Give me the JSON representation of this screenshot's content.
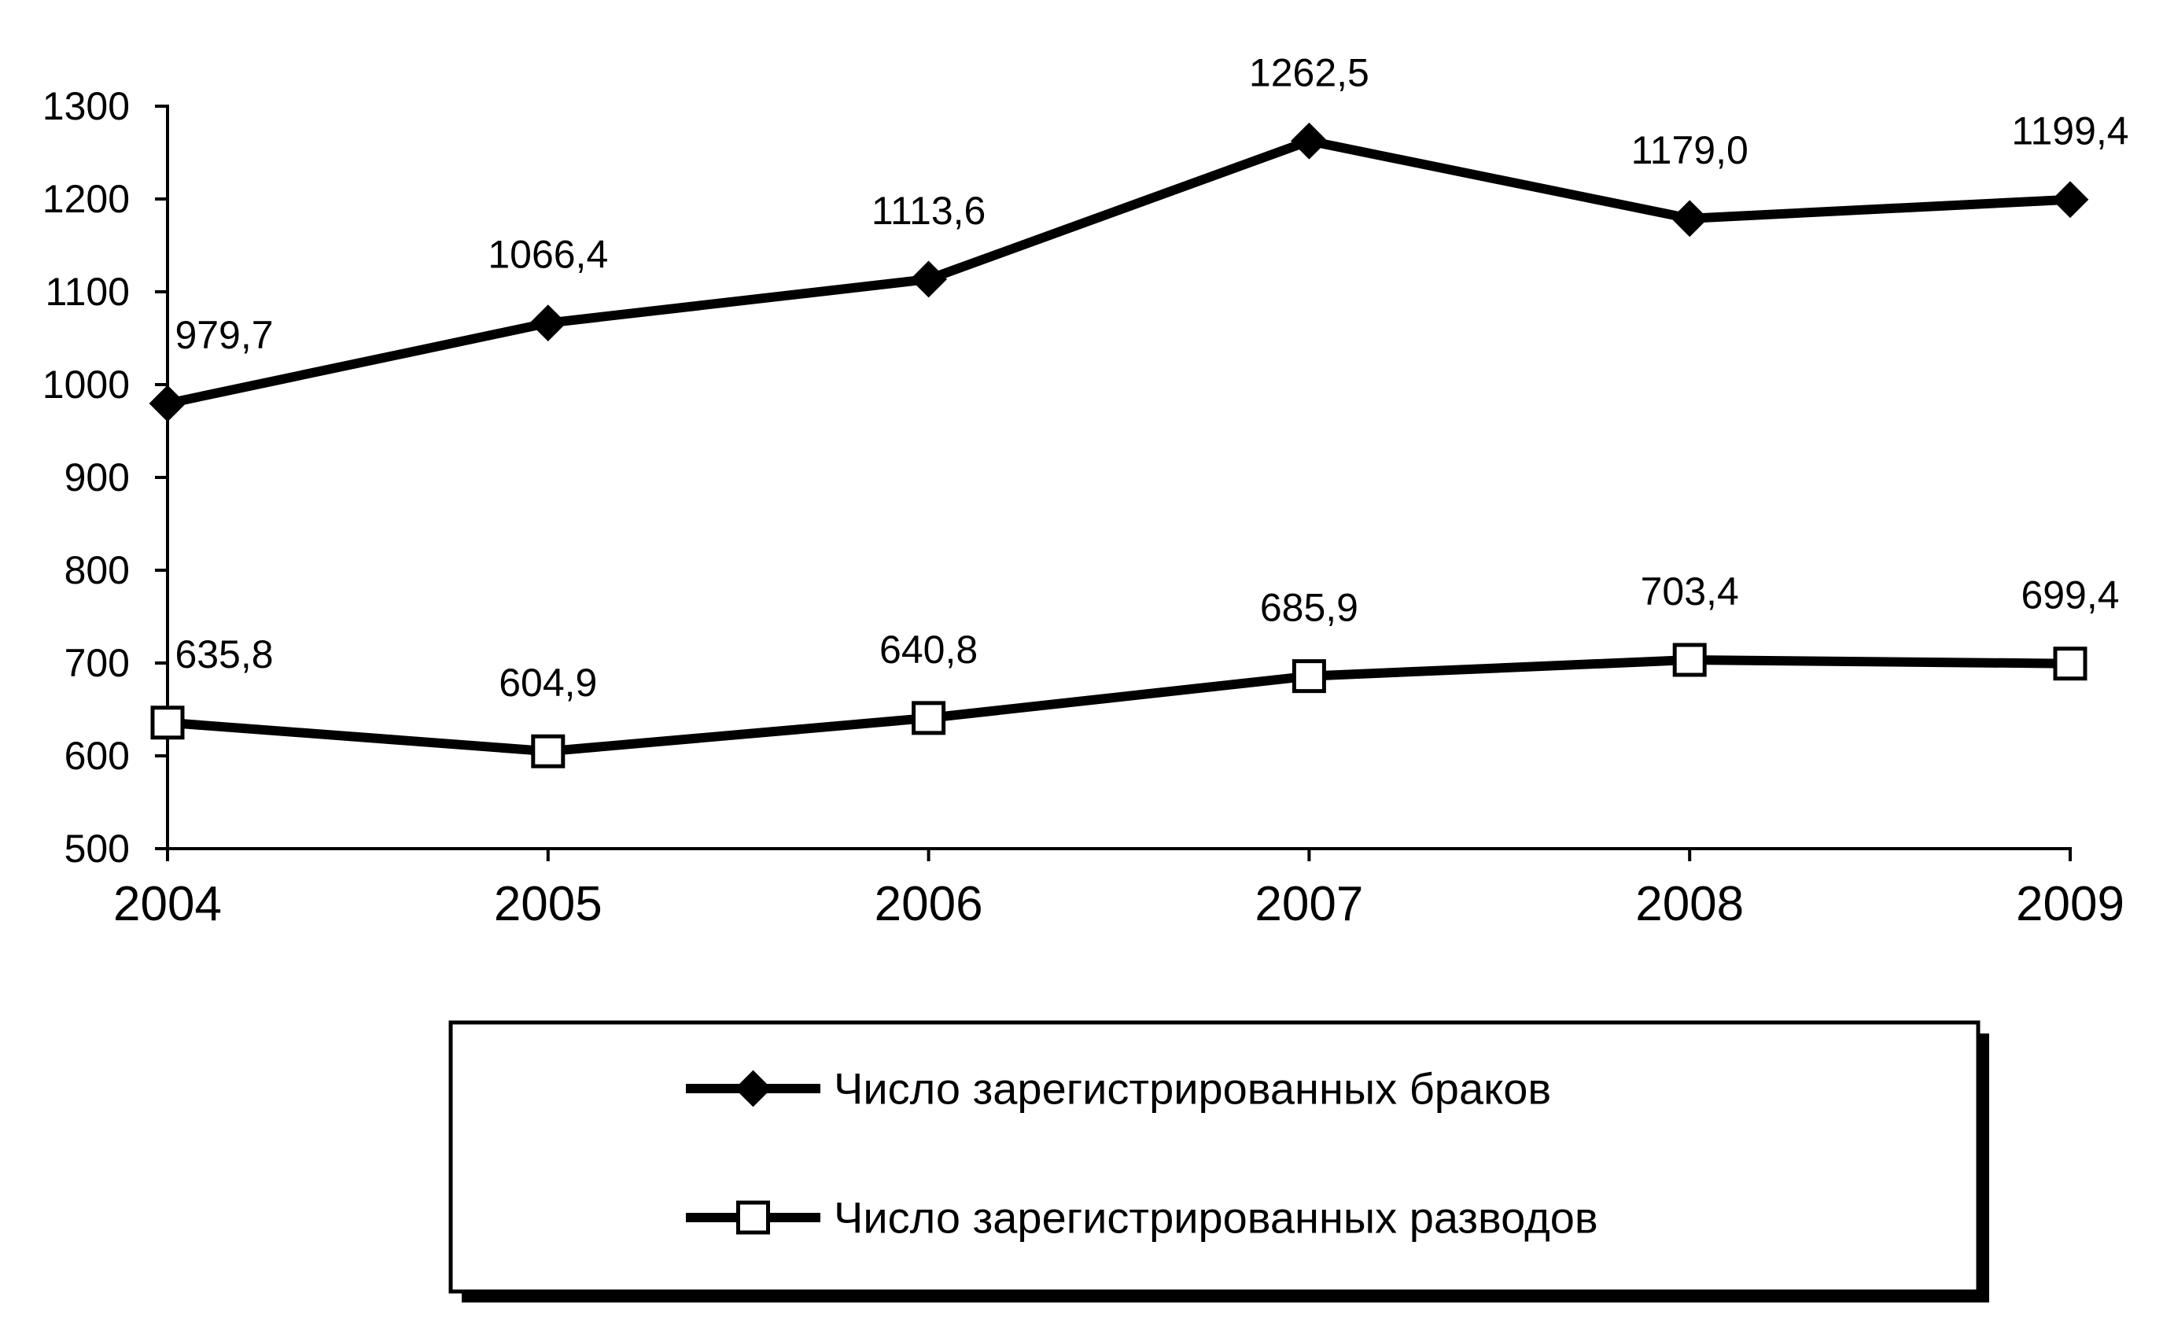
{
  "chart_data": {
    "type": "line",
    "categories": [
      "2004",
      "2005",
      "2006",
      "2007",
      "2008",
      "2009"
    ],
    "series": [
      {
        "name": "Число зарегистрированных браков",
        "values": [
          979.7,
          1066.4,
          1113.6,
          1262.5,
          1179.0,
          1199.4
        ],
        "labels": [
          "979,7",
          "1066,4",
          "1113,6",
          "1262,5",
          "1179,0",
          "1199,4"
        ],
        "marker": "filled-diamond",
        "color": "#000000"
      },
      {
        "name": "Число зарегистрированных разводов",
        "values": [
          635.8,
          604.9,
          640.8,
          685.9,
          703.4,
          699.4
        ],
        "labels": [
          "635,8",
          "604,9",
          "640,8",
          "685,9",
          "703,4",
          "699,4"
        ],
        "marker": "hollow-square",
        "color": "#000000"
      }
    ],
    "ylim": [
      500,
      1300
    ],
    "yticks": [
      "500",
      "600",
      "700",
      "800",
      "900",
      "1000",
      "1100",
      "1200",
      "1300"
    ],
    "grid": false,
    "legend_position": "bottom-center",
    "title": "",
    "xlabel": "",
    "ylabel": ""
  }
}
